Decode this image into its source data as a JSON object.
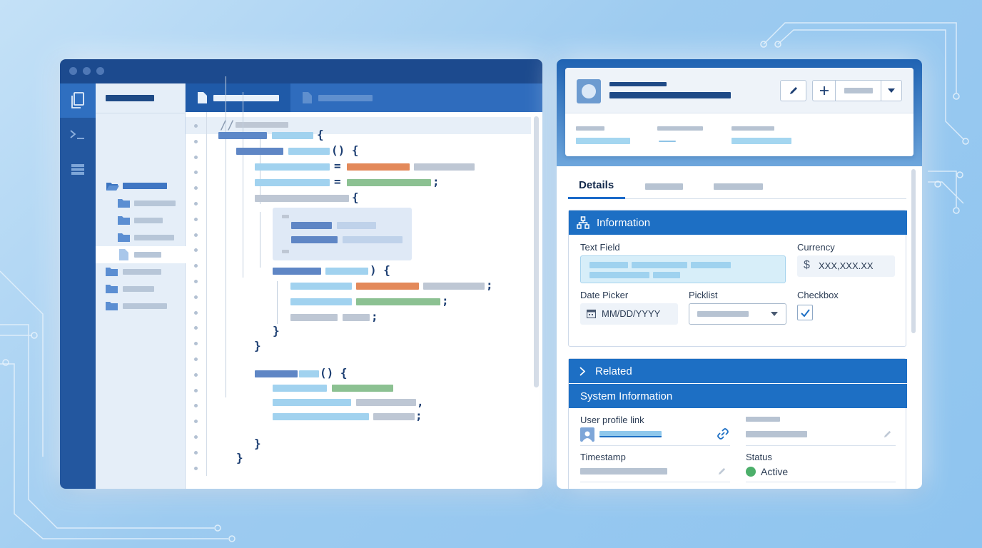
{
  "crm": {
    "tabs": {
      "details": "Details"
    },
    "sections": {
      "information": {
        "title": "Information",
        "text_field_label": "Text Field",
        "currency_label": "Currency",
        "currency_symbol": "$",
        "currency_value": "XXX,XXX.XX",
        "date_picker_label": "Date Picker",
        "date_value": "MM/DD/YYYY",
        "picklist_label": "Picklist",
        "checkbox_label": "Checkbox"
      },
      "related": {
        "title": "Related"
      },
      "system_information": {
        "title": "System Information",
        "user_profile_link_label": "User profile link",
        "timestamp_label": "Timestamp",
        "status_label": "Status",
        "status_value": "Active"
      }
    }
  },
  "editor": {
    "comment_marker": "//"
  },
  "colors": {
    "title_bar": "#1c4a8e",
    "accent_blue": "#1d6fc4",
    "status_active": "#4caf6a"
  },
  "icons": [
    "files-icon",
    "terminal-icon",
    "database-icon",
    "folder-open-icon",
    "folder-icon",
    "file-icon",
    "pencil-icon",
    "plus-icon",
    "chevron-down-icon",
    "hierarchy-icon",
    "chevron-right-icon",
    "dollar-icon",
    "calendar-icon",
    "check-icon",
    "user-icon",
    "link-icon",
    "status-dot-icon"
  ]
}
